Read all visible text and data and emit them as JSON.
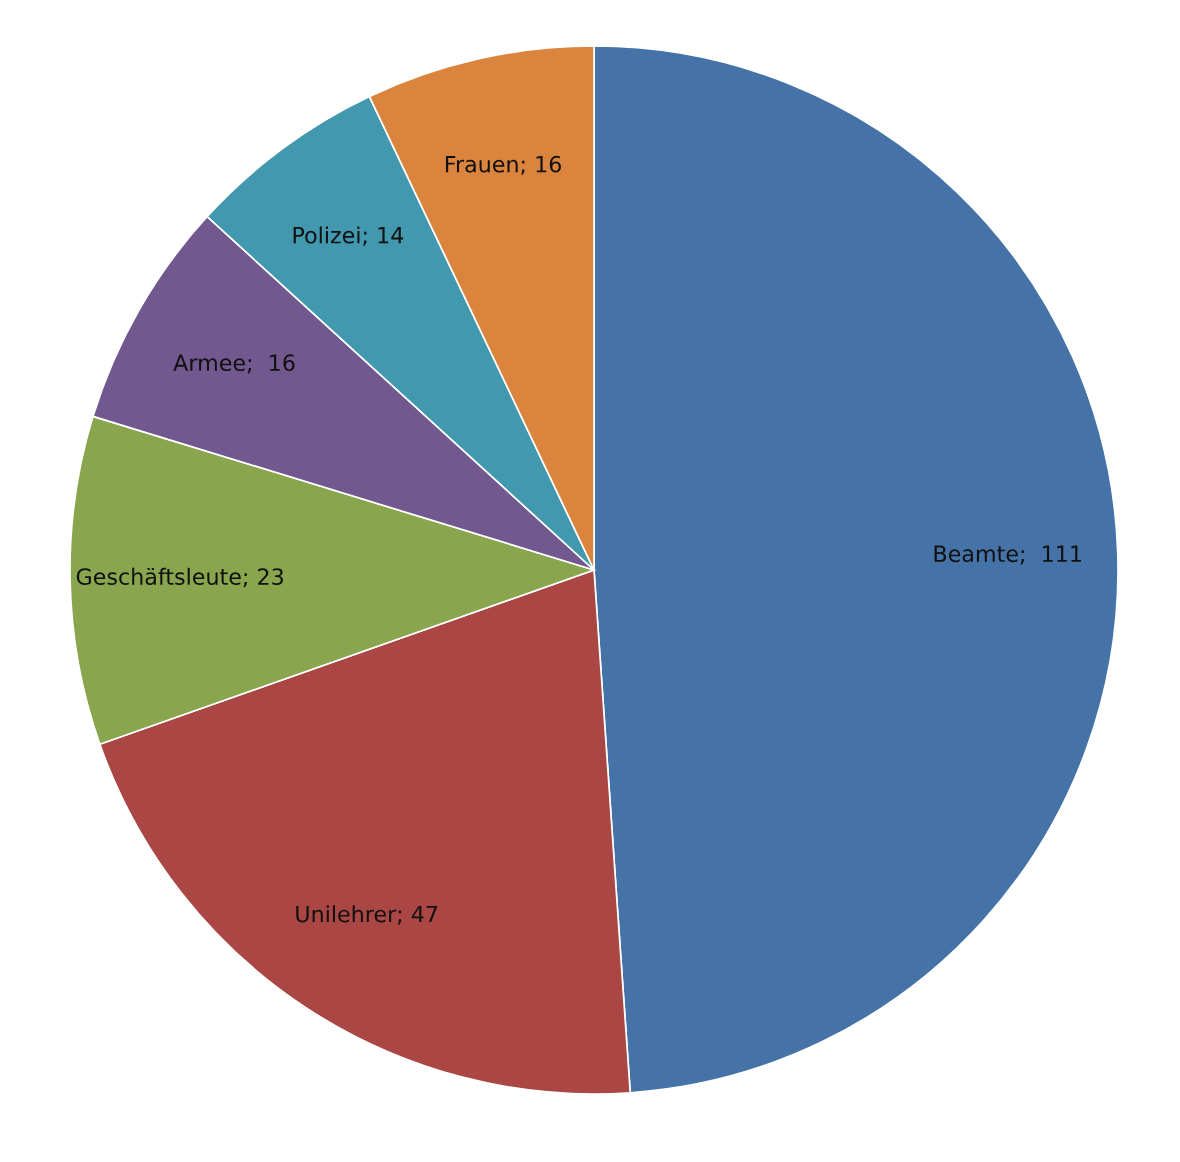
{
  "chart_data": {
    "type": "pie",
    "categories": [
      "Beamte",
      "Unilehrer",
      "Geschäftsleute",
      "Armee",
      "Polizei",
      "Frauen"
    ],
    "values": [
      111,
      47,
      23,
      16,
      14,
      16
    ],
    "value_labels": [
      ";  111",
      "; 47",
      "; 23",
      ";  16",
      "; 14",
      "; 16"
    ],
    "colors": [
      "#4572a7",
      "#aa4643",
      "#89a54e",
      "#71588f",
      "#4198af",
      "#db843d"
    ]
  }
}
